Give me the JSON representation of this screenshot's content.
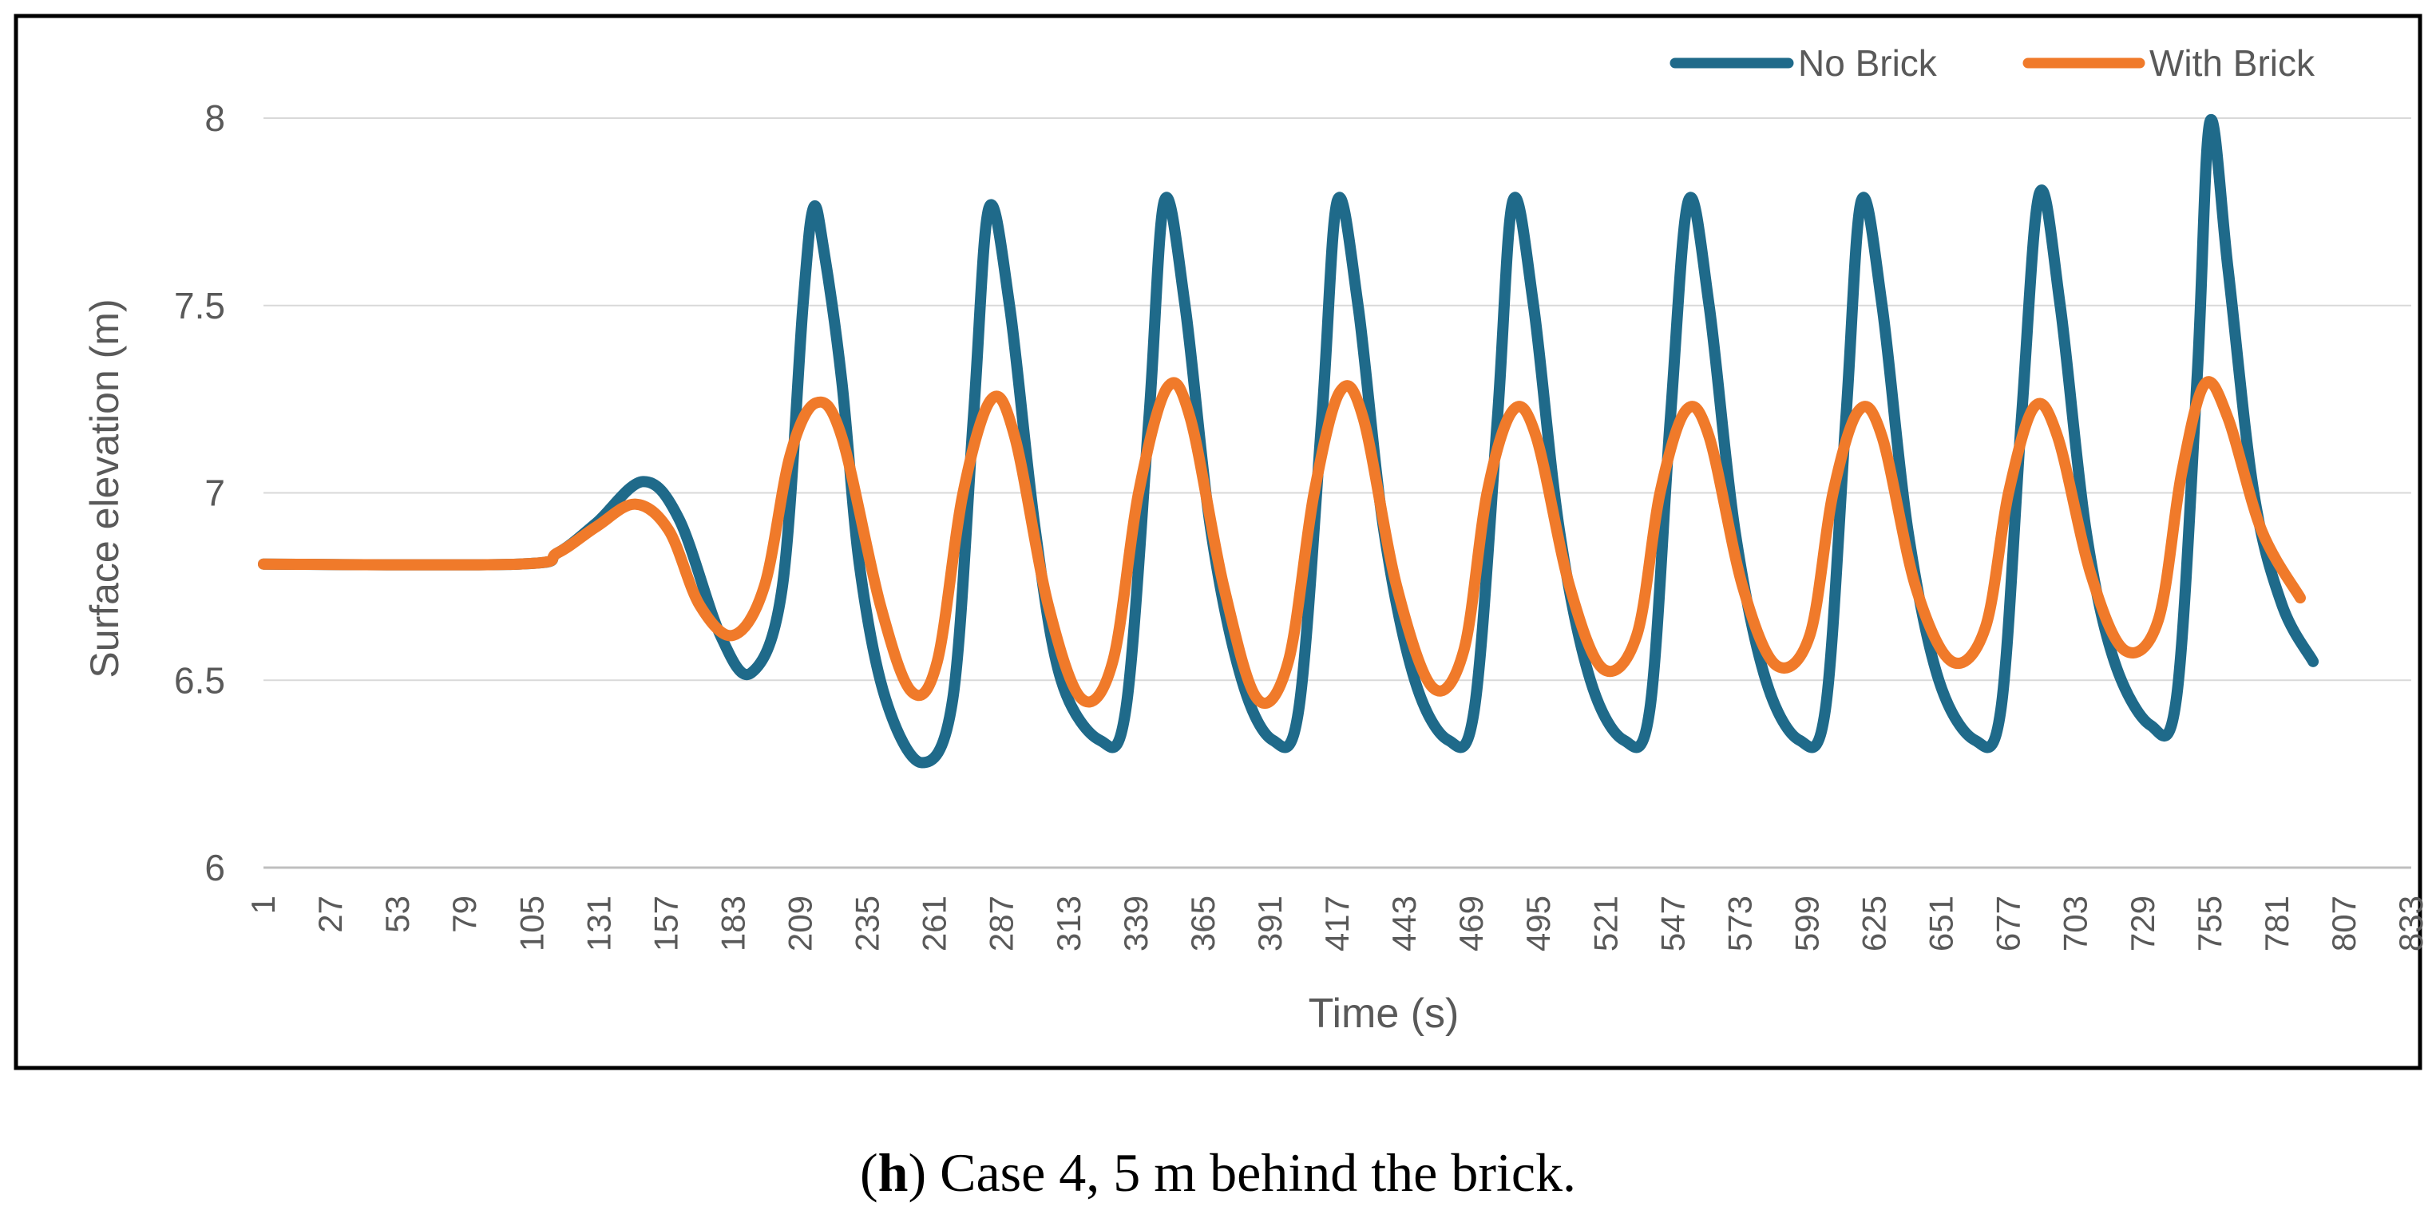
{
  "caption": {
    "letter": "h",
    "open_paren": "(",
    "close_paren": ")",
    "text": " Case 4, 5 m behind the brick."
  },
  "chart_data": {
    "type": "line",
    "xlabel": "Time (s)",
    "ylabel": "Surface elevation (m)",
    "ylim": [
      6,
      8
    ],
    "xlim": [
      1,
      833
    ],
    "y_ticks": [
      "6",
      "6.5",
      "7",
      "7.5",
      "8"
    ],
    "x_ticks": [
      "1",
      "27",
      "53",
      "79",
      "105",
      "131",
      "157",
      "183",
      "209",
      "235",
      "261",
      "287",
      "313",
      "339",
      "365",
      "391",
      "417",
      "443",
      "469",
      "495",
      "521",
      "547",
      "573",
      "599",
      "625",
      "651",
      "677",
      "703",
      "729",
      "755",
      "781",
      "807",
      "833"
    ],
    "grid": true,
    "legend": "top-right",
    "series": [
      {
        "name": "No Brick",
        "color": "#1F6A8A",
        "points": [
          [
            1,
            6.81
          ],
          [
            100,
            6.81
          ],
          [
            115,
            6.84
          ],
          [
            130,
            6.92
          ],
          [
            148,
            7.03
          ],
          [
            162,
            6.93
          ],
          [
            178,
            6.62
          ],
          [
            190,
            6.52
          ],
          [
            202,
            6.75
          ],
          [
            210,
            7.5
          ],
          [
            214,
            7.76
          ],
          [
            218,
            7.65
          ],
          [
            225,
            7.3
          ],
          [
            232,
            6.8
          ],
          [
            242,
            6.45
          ],
          [
            256,
            6.28
          ],
          [
            268,
            6.45
          ],
          [
            276,
            7.2
          ],
          [
            282,
            7.76
          ],
          [
            290,
            7.5
          ],
          [
            300,
            6.9
          ],
          [
            310,
            6.5
          ],
          [
            325,
            6.34
          ],
          [
            335,
            6.42
          ],
          [
            344,
            7.2
          ],
          [
            350,
            7.78
          ],
          [
            358,
            7.5
          ],
          [
            368,
            6.9
          ],
          [
            380,
            6.5
          ],
          [
            392,
            6.34
          ],
          [
            402,
            6.42
          ],
          [
            411,
            7.2
          ],
          [
            417,
            7.78
          ],
          [
            425,
            7.5
          ],
          [
            435,
            6.9
          ],
          [
            447,
            6.5
          ],
          [
            460,
            6.34
          ],
          [
            470,
            6.42
          ],
          [
            479,
            7.2
          ],
          [
            485,
            7.78
          ],
          [
            493,
            7.5
          ],
          [
            503,
            6.9
          ],
          [
            515,
            6.5
          ],
          [
            528,
            6.34
          ],
          [
            538,
            6.42
          ],
          [
            546,
            7.2
          ],
          [
            553,
            7.78
          ],
          [
            561,
            7.5
          ],
          [
            571,
            6.9
          ],
          [
            583,
            6.5
          ],
          [
            596,
            6.34
          ],
          [
            606,
            6.42
          ],
          [
            614,
            7.2
          ],
          [
            620,
            7.78
          ],
          [
            628,
            7.5
          ],
          [
            638,
            6.9
          ],
          [
            650,
            6.5
          ],
          [
            664,
            6.34
          ],
          [
            674,
            6.42
          ],
          [
            682,
            7.2
          ],
          [
            689,
            7.8
          ],
          [
            697,
            7.5
          ],
          [
            707,
            6.9
          ],
          [
            718,
            6.55
          ],
          [
            732,
            6.38
          ],
          [
            742,
            6.45
          ],
          [
            750,
            7.3
          ],
          [
            755,
            7.99
          ],
          [
            762,
            7.6
          ],
          [
            772,
            7.0
          ],
          [
            783,
            6.7
          ],
          [
            795,
            6.55
          ]
        ]
      },
      {
        "name": "With Brick",
        "color": "#F07A2A",
        "points": [
          [
            1,
            6.81
          ],
          [
            100,
            6.81
          ],
          [
            115,
            6.84
          ],
          [
            130,
            6.91
          ],
          [
            145,
            6.97
          ],
          [
            158,
            6.9
          ],
          [
            170,
            6.7
          ],
          [
            183,
            6.62
          ],
          [
            195,
            6.75
          ],
          [
            205,
            7.1
          ],
          [
            215,
            7.24
          ],
          [
            225,
            7.15
          ],
          [
            240,
            6.7
          ],
          [
            252,
            6.47
          ],
          [
            262,
            6.55
          ],
          [
            272,
            7.0
          ],
          [
            283,
            7.25
          ],
          [
            292,
            7.15
          ],
          [
            305,
            6.7
          ],
          [
            318,
            6.45
          ],
          [
            330,
            6.55
          ],
          [
            340,
            7.0
          ],
          [
            351,
            7.28
          ],
          [
            360,
            7.2
          ],
          [
            373,
            6.75
          ],
          [
            386,
            6.45
          ],
          [
            398,
            6.55
          ],
          [
            408,
            7.0
          ],
          [
            418,
            7.27
          ],
          [
            427,
            7.2
          ],
          [
            440,
            6.75
          ],
          [
            454,
            6.48
          ],
          [
            466,
            6.58
          ],
          [
            475,
            7.0
          ],
          [
            485,
            7.22
          ],
          [
            494,
            7.15
          ],
          [
            507,
            6.75
          ],
          [
            520,
            6.53
          ],
          [
            533,
            6.62
          ],
          [
            542,
            7.0
          ],
          [
            552,
            7.22
          ],
          [
            561,
            7.15
          ],
          [
            574,
            6.75
          ],
          [
            587,
            6.54
          ],
          [
            600,
            6.62
          ],
          [
            609,
            7.0
          ],
          [
            619,
            7.22
          ],
          [
            628,
            7.15
          ],
          [
            641,
            6.75
          ],
          [
            655,
            6.55
          ],
          [
            668,
            6.64
          ],
          [
            677,
            7.0
          ],
          [
            687,
            7.23
          ],
          [
            696,
            7.15
          ],
          [
            709,
            6.78
          ],
          [
            722,
            6.58
          ],
          [
            735,
            6.66
          ],
          [
            744,
            7.05
          ],
          [
            753,
            7.29
          ],
          [
            762,
            7.2
          ],
          [
            775,
            6.9
          ],
          [
            790,
            6.72
          ]
        ]
      }
    ]
  }
}
